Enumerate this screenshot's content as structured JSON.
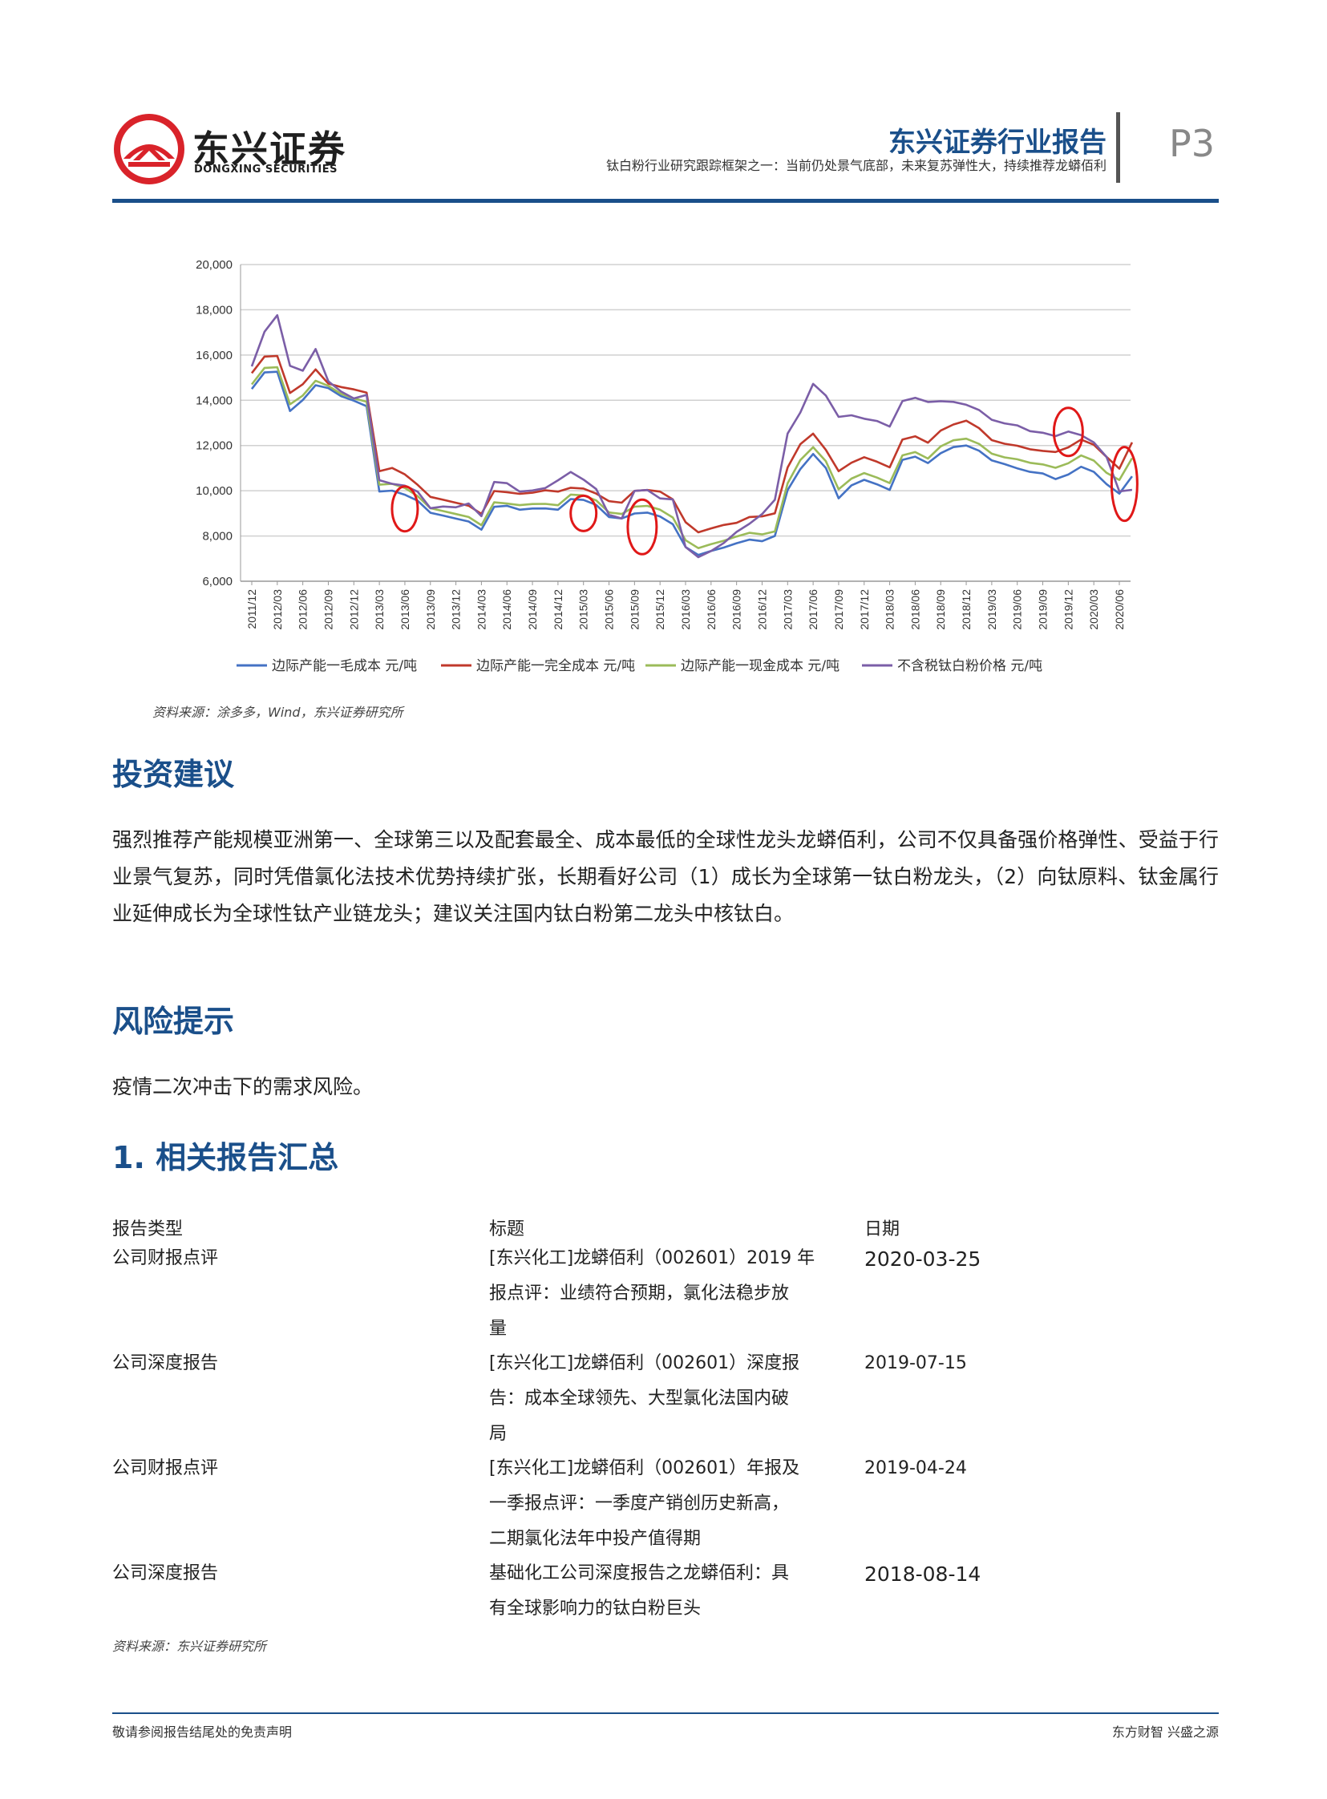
{
  "header": {
    "logo_cn": "东兴证券",
    "logo_en": "DONGXING SECURITIES",
    "report_type": "东兴证券行业报告",
    "subtitle": "钛白粉行业研究跟踪框架之一：当前仍处景气底部，未来复苏弹性大，持续推荐龙蟒佰利",
    "page": "P3",
    "brand_color": "#1a4f8a",
    "logo_color": "#d9232a"
  },
  "chart_data": {
    "type": "line",
    "title": "",
    "xlabel": "",
    "ylabel": "",
    "ylim": [
      6000,
      20000
    ],
    "yticks": [
      "20,000",
      "18,000",
      "16,000",
      "14,000",
      "12,000",
      "10,000",
      "8,000",
      "6,000"
    ],
    "xticks": [
      "2011/12",
      "2012/03",
      "2012/06",
      "2012/09",
      "2012/12",
      "2013/03",
      "2013/06",
      "2013/09",
      "2013/12",
      "2014/03",
      "2014/06",
      "2014/09",
      "2014/12",
      "2015/03",
      "2015/06",
      "2015/09",
      "2015/12",
      "2016/03",
      "2016/06",
      "2016/09",
      "2016/12",
      "2017/03",
      "2017/06",
      "2017/09",
      "2017/12",
      "2018/03",
      "2018/06",
      "2018/09",
      "2018/12",
      "2019/03",
      "2019/06",
      "2019/09",
      "2019/12",
      "2020/03",
      "2020/06"
    ],
    "grid": "horizontal",
    "legend_position": "bottom",
    "series": [
      {
        "name": "边际产能一毛成本 元/吨",
        "color": "#4472c4",
        "x": [
          0,
          0.5,
          1,
          1.5,
          2,
          2.5,
          3,
          3.5,
          4,
          4.5,
          5,
          5.5,
          6,
          6.5,
          7,
          7.5,
          8,
          8.5,
          9,
          9.5,
          10,
          10.5,
          11,
          11.5,
          12,
          12.5,
          13,
          13.5,
          14,
          14.5,
          15,
          15.5,
          16,
          16.5,
          17,
          17.5,
          18,
          18.5,
          19,
          19.5,
          20,
          20.5,
          21,
          21.5,
          22,
          22.5,
          23,
          23.5,
          24,
          24.5,
          25,
          25.5,
          26,
          26.5,
          27,
          27.5,
          28,
          28.5,
          29,
          29.5,
          30,
          30.5,
          31,
          31.5,
          32,
          32.5,
          33,
          33.5,
          34,
          34.5
        ],
        "y": [
          14500,
          15200,
          15300,
          13500,
          14000,
          14700,
          14500,
          14200,
          14000,
          13700,
          10000,
          10000,
          9800,
          9600,
          9000,
          8900,
          8800,
          8600,
          8300,
          9300,
          9300,
          9200,
          9200,
          9200,
          9200,
          9600,
          9600,
          9400,
          8800,
          8800,
          9000,
          9000,
          8900,
          8500,
          7500,
          7200,
          7300,
          7500,
          7700,
          7800,
          7800,
          8000,
          10000,
          11000,
          11600,
          11000,
          9700,
          10200,
          10500,
          10300,
          10000,
          11400,
          11500,
          11200,
          11700,
          11900,
          12000,
          11800,
          11300,
          11200,
          11000,
          10800,
          10800,
          10500,
          10700,
          11100,
          10800,
          10300,
          9900,
          10600
        ]
      },
      {
        "name": "边际产能一完全成本 元/吨",
        "color": "#c0392b",
        "x": [
          0,
          0.5,
          1,
          1.5,
          2,
          2.5,
          3,
          3.5,
          4,
          4.5,
          5,
          5.5,
          6,
          6.5,
          7,
          7.5,
          8,
          8.5,
          9,
          9.5,
          10,
          10.5,
          11,
          11.5,
          12,
          12.5,
          13,
          13.5,
          14,
          14.5,
          15,
          15.5,
          16,
          16.5,
          17,
          17.5,
          18,
          18.5,
          19,
          19.5,
          20,
          20.5,
          21,
          21.5,
          22,
          22.5,
          23,
          23.5,
          24,
          24.5,
          25,
          25.5,
          26,
          26.5,
          27,
          27.5,
          28,
          28.5,
          29,
          29.5,
          30,
          30.5,
          31,
          31.5,
          32,
          32.5,
          33,
          33.5,
          34,
          34.5
        ],
        "y": [
          15200,
          15900,
          16000,
          14300,
          14700,
          15400,
          14700,
          14600,
          14500,
          14300,
          10900,
          11000,
          10700,
          10300,
          9700,
          9600,
          9500,
          9300,
          9000,
          10000,
          9900,
          9900,
          9900,
          10000,
          10000,
          10100,
          10100,
          9900,
          9500,
          9500,
          10000,
          10000,
          10000,
          9600,
          8600,
          8200,
          8300,
          8500,
          8600,
          8800,
          8900,
          9000,
          11000,
          12100,
          12500,
          11800,
          10900,
          11200,
          11500,
          11300,
          11000,
          12300,
          12400,
          12100,
          12700,
          12900,
          13100,
          12800,
          12200,
          12100,
          12000,
          11800,
          11800,
          11700,
          11900,
          12300,
          12000,
          11500,
          11000,
          12100
        ]
      },
      {
        "name": "边际产能一现金成本 元/吨",
        "color": "#9bbb59",
        "x": [
          0,
          0.5,
          1,
          1.5,
          2,
          2.5,
          3,
          3.5,
          4,
          4.5,
          5,
          5.5,
          6,
          6.5,
          7,
          7.5,
          8,
          8.5,
          9,
          9.5,
          10,
          10.5,
          11,
          11.5,
          12,
          12.5,
          13,
          13.5,
          14,
          14.5,
          15,
          15.5,
          16,
          16.5,
          17,
          17.5,
          18,
          18.5,
          19,
          19.5,
          20,
          20.5,
          21,
          21.5,
          22,
          22.5,
          23,
          23.5,
          24,
          24.5,
          25,
          25.5,
          26,
          26.5,
          27,
          27.5,
          28,
          28.5,
          29,
          29.5,
          30,
          30.5,
          31,
          31.5,
          32,
          32.5,
          33,
          33.5,
          34,
          34.5
        ],
        "y": [
          14700,
          15400,
          15500,
          13800,
          14200,
          14900,
          14600,
          14300,
          14100,
          13900,
          10300,
          10300,
          10100,
          9800,
          9200,
          9100,
          9000,
          8800,
          8500,
          9500,
          9400,
          9400,
          9400,
          9400,
          9400,
          9800,
          9800,
          9600,
          9000,
          9000,
          9300,
          9300,
          9200,
          8800,
          7800,
          7500,
          7600,
          7800,
          8000,
          8100,
          8100,
          8200,
          10300,
          11400,
          11900,
          11300,
          10100,
          10500,
          10800,
          10600,
          10300,
          11600,
          11700,
          11400,
          12000,
          12200,
          12300,
          12100,
          11600,
          11500,
          11400,
          11200,
          11200,
          11000,
          11200,
          11600,
          11300,
          10800,
          10500,
          11400
        ]
      },
      {
        "name": "不含税钛白粉价格 元/吨",
        "color": "#7b5ea7",
        "x": [
          0,
          0.5,
          1,
          1.5,
          2,
          2.5,
          3,
          3.5,
          4,
          4.5,
          5,
          5.5,
          6,
          6.5,
          7,
          7.5,
          8,
          8.5,
          9,
          9.5,
          10,
          10.5,
          11,
          11.5,
          12,
          12.5,
          13,
          13.5,
          14,
          14.5,
          15,
          15.5,
          16,
          16.5,
          17,
          17.5,
          18,
          18.5,
          19,
          19.5,
          20,
          20.5,
          21,
          21.5,
          22,
          22.5,
          23,
          23.5,
          24,
          24.5,
          25,
          25.5,
          26,
          26.5,
          27,
          27.5,
          28,
          28.5,
          29,
          29.5,
          30,
          30.5,
          31,
          31.5,
          32,
          32.5,
          33,
          33.5,
          34,
          34.5
        ],
        "y": [
          15500,
          17000,
          17800,
          15500,
          15300,
          16300,
          14800,
          14400,
          14100,
          14200,
          10500,
          10300,
          10200,
          10000,
          9200,
          9300,
          9300,
          9400,
          8900,
          10400,
          10300,
          10000,
          10000,
          10100,
          10500,
          10800,
          10500,
          10100,
          8900,
          8800,
          10000,
          10000,
          9700,
          9600,
          7500,
          7100,
          7300,
          7700,
          8200,
          8500,
          9000,
          9600,
          12500,
          13500,
          14700,
          14200,
          13300,
          13300,
          13200,
          13100,
          12800,
          14000,
          14100,
          13900,
          14000,
          13900,
          13800,
          13600,
          13100,
          13000,
          12900,
          12600,
          12600,
          12400,
          12600,
          12500,
          12100,
          11500,
          10000,
          10000
        ]
      }
    ],
    "annotations": "red circles at 2013/06, 2015/03, 2015/10, 2019/12, 2020/06"
  },
  "chart_source": "资料来源：涂多多，Wind，东兴证券研究所",
  "sections": {
    "invest_title": "投资建议",
    "invest_para": "强烈推荐产能规模亚洲第一、全球第三以及配套最全、成本最低的全球性龙头龙蟒佰利，公司不仅具备强价格弹性、受益于行业景气复苏，同时凭借氯化法技术优势持续扩张，长期看好公司（1）成长为全球第一钛白粉龙头，（2）向钛原料、钛金属行业延伸成长为全球性钛产业链龙头；建议关注国内钛白粉第二龙头中核钛白。",
    "risk_title": "风险提示",
    "risk_para": "疫情二次冲击下的需求风险。",
    "reports_title": "1. 相关报告汇总"
  },
  "reports_table": {
    "headers": [
      "报告类型",
      "标题",
      "日期"
    ],
    "rows": [
      {
        "type": "公司财报点评",
        "title_lines": [
          "[东兴化工]龙蟒佰利（002601）2019 年",
          "报点评：业绩符合预期，氯化法稳步放",
          "量"
        ],
        "date": "2020-03-25"
      },
      {
        "type": "公司深度报告",
        "title_lines": [
          "[东兴化工]龙蟒佰利（002601）深度报",
          "告：成本全球领先、大型氯化法国内破",
          "局"
        ],
        "date": "2019-07-15"
      },
      {
        "type": "公司财报点评",
        "title_lines": [
          "[东兴化工]龙蟒佰利（002601）年报及",
          "一季报点评：一季度产销创历史新高，",
          "二期氯化法年中投产值得期"
        ],
        "date": "2019-04-24"
      },
      {
        "type": "公司深度报告",
        "title_lines": [
          "基础化工公司深度报告之龙蟒佰利：具",
          "有全球影响力的钛白粉巨头"
        ],
        "date": "2018-08-14"
      }
    ],
    "source": "资料来源：东兴证券研究所"
  },
  "footer": {
    "left": "敬请参阅报告结尾处的免责声明",
    "right": "东方财智 兴盛之源"
  }
}
